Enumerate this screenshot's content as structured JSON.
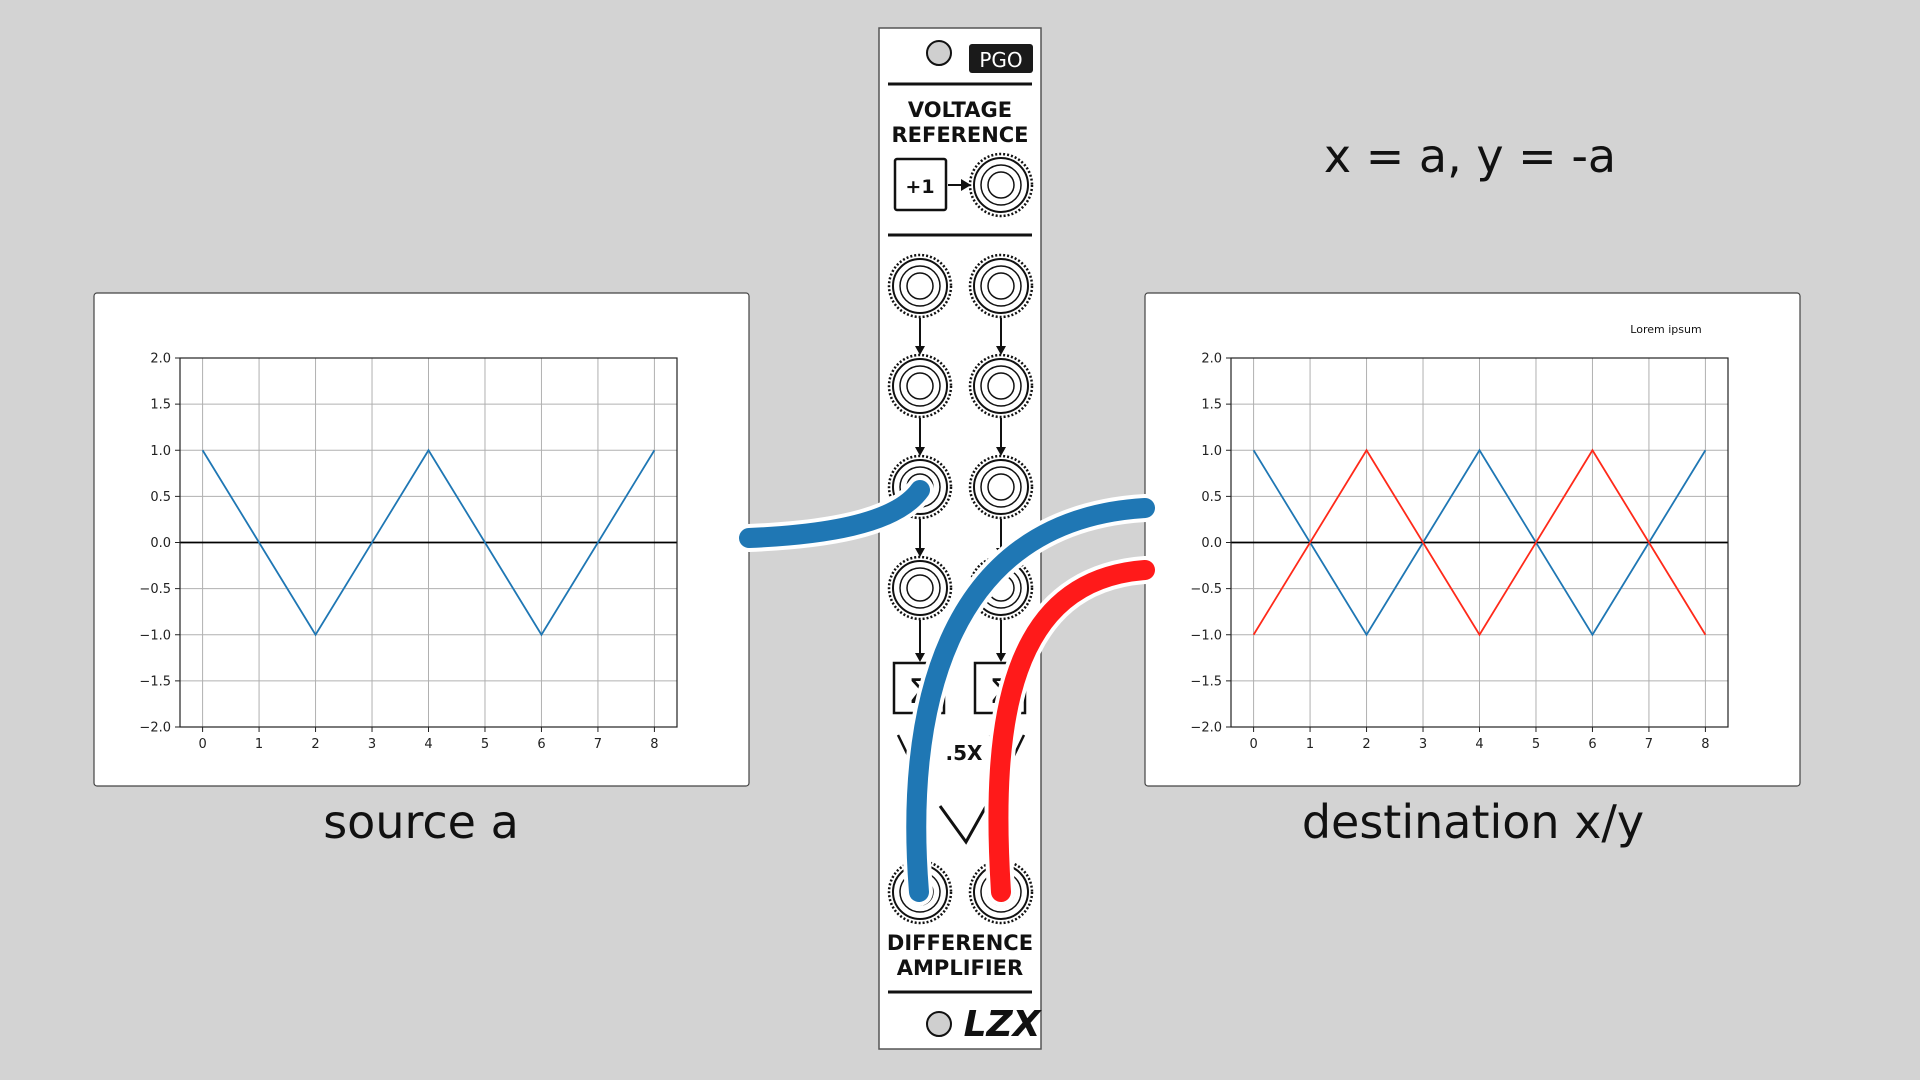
{
  "formula": "x = a, y = -a",
  "source_caption": "source a",
  "destination_caption": "destination x/y",
  "module": {
    "badge": "PGO",
    "top_label_line1": "VOLTAGE",
    "top_label_line2": "REFERENCE",
    "ref_button": "+1",
    "gain_label": ".5X",
    "bottom_label_line1": "DIFFERENCE",
    "bottom_label_line2": "AMPLIFIER",
    "logo": "LZX"
  },
  "colors": {
    "background": "#d3d3d3",
    "blue_cable": "#1f77b4",
    "red_cable": "#ff1a1a",
    "series_a": "#1f77b4",
    "series_y": "#ff2a1a"
  },
  "chart_data": [
    {
      "type": "line",
      "title": "",
      "xlabel": "",
      "ylabel": "",
      "xlim": [
        -0.4,
        8.4
      ],
      "ylim": [
        -2.0,
        2.0
      ],
      "xticks": [
        "0",
        "1",
        "2",
        "3",
        "4",
        "5",
        "6",
        "7",
        "8"
      ],
      "yticks": [
        "2.0",
        "1.5",
        "1.0",
        "0.5",
        "0.0",
        "−0.5",
        "−1.0",
        "−1.5",
        "−2.0"
      ],
      "grid": true,
      "series": [
        {
          "color": "#1f77b4",
          "x": [
            0,
            2,
            4,
            6,
            8
          ],
          "y": [
            1,
            -1,
            1,
            -1,
            1
          ]
        }
      ]
    },
    {
      "type": "line",
      "title": "",
      "xlabel": "",
      "ylabel": "",
      "xlim": [
        -0.4,
        8.4
      ],
      "ylim": [
        -2.0,
        2.0
      ],
      "xticks": [
        "0",
        "1",
        "2",
        "3",
        "4",
        "5",
        "6",
        "7",
        "8"
      ],
      "yticks": [
        "2.0",
        "1.5",
        "1.0",
        "0.5",
        "0.0",
        "−0.5",
        "−1.0",
        "−1.5",
        "−2.0"
      ],
      "grid": true,
      "legend_text": "Lorem ipsum",
      "series": [
        {
          "color": "#1f77b4",
          "x": [
            0,
            2,
            4,
            6,
            8
          ],
          "y": [
            1,
            -1,
            1,
            -1,
            1
          ]
        },
        {
          "color": "#ff2a1a",
          "x": [
            0,
            2,
            4,
            6,
            8
          ],
          "y": [
            -1,
            1,
            -1,
            1,
            -1
          ]
        }
      ]
    }
  ]
}
